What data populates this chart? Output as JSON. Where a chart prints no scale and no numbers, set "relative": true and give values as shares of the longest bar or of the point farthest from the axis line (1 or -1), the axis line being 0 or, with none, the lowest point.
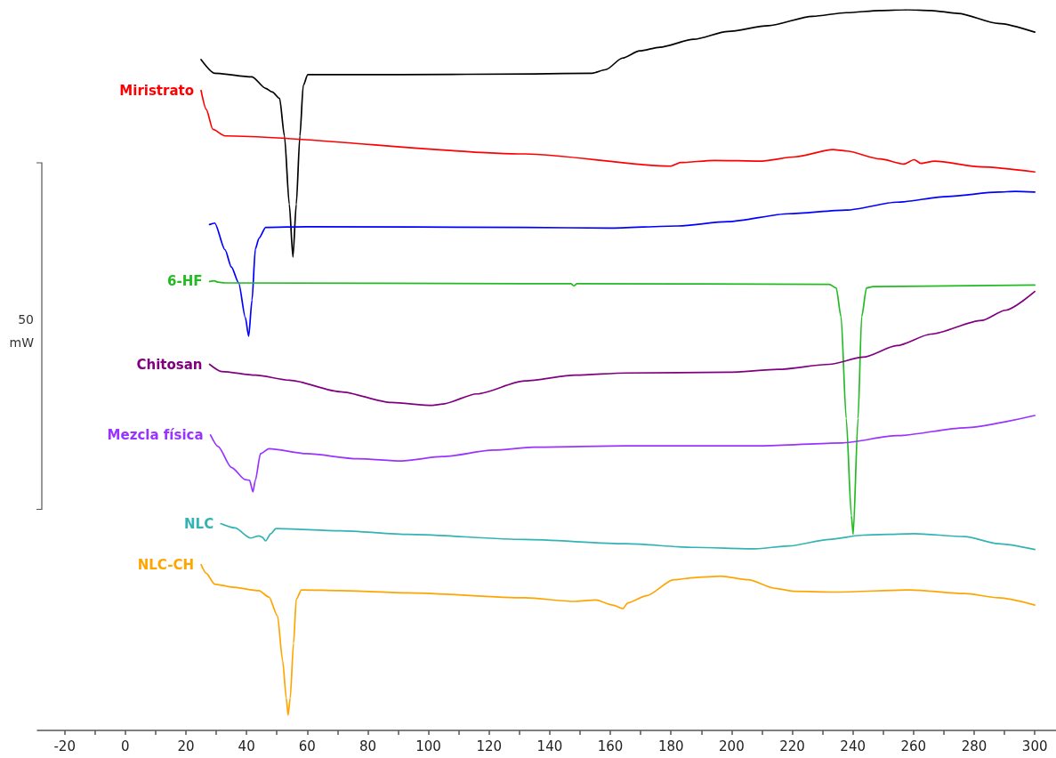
{
  "chart_data": {
    "type": "line",
    "relative": true,
    "marker": "none",
    "line_style": "solid",
    "xlim": [
      -29,
      307
    ],
    "xticks": [
      -20,
      {
        "value": -10,
        "label": null
      },
      0,
      {
        "value": 10,
        "label": null
      },
      20,
      {
        "value": 30,
        "label": null
      },
      40,
      {
        "value": 50,
        "label": null
      },
      60,
      {
        "value": 70,
        "label": null
      },
      80,
      {
        "value": 90,
        "label": null
      },
      100,
      {
        "value": 110,
        "label": null
      },
      120,
      {
        "value": 130,
        "label": null
      },
      140,
      {
        "value": 150,
        "label": null
      },
      160,
      {
        "value": 170,
        "label": null
      },
      180,
      {
        "value": 190,
        "label": null
      },
      200,
      {
        "value": 210,
        "label": null
      },
      220,
      {
        "value": 230,
        "label": null
      },
      240,
      {
        "value": 250,
        "label": null
      },
      260,
      {
        "value": 270,
        "label": null
      },
      280,
      {
        "value": 290,
        "label": null
      },
      300
    ],
    "annotations": [
      "50 mW"
    ],
    "series": [
      {
        "color": "#000000",
        "x": [
          25,
          29.5,
          41.8,
          46.3,
          48.5,
          50.9,
          52.5,
          54.1,
          55.3,
          56.4,
          57.6,
          58.7,
          60.2,
          90.7,
          134.7,
          154,
          158.5,
          164,
          169.7,
          176.3,
          187.5,
          198.8,
          212.1,
          226.7,
          237.8,
          249,
          257.8,
          265.8,
          274.7,
          288,
          300
        ],
        "values": [
          0.931,
          0.912,
          0.907,
          0.891,
          0.886,
          0.877,
          0.825,
          0.73,
          0.657,
          0.73,
          0.825,
          0.895,
          0.91,
          0.91,
          0.911,
          0.912,
          0.917,
          0.933,
          0.943,
          0.948,
          0.959,
          0.97,
          0.978,
          0.991,
          0.996,
          0.999,
          1,
          0.999,
          0.995,
          0.981,
          0.969
        ]
      },
      {
        "name": "Miristrato",
        "color": "#ff0000",
        "x": [
          25,
          26.7,
          28.9,
          32.9,
          131.8,
          179.8,
          183.1,
          194.2,
          209.9,
          221.1,
          233.4,
          237.8,
          249,
          256.8,
          260.2,
          262.4,
          266.9,
          282.5,
          300
        ],
        "values": [
          0.888,
          0.862,
          0.834,
          0.825,
          0.8,
          0.783,
          0.788,
          0.791,
          0.79,
          0.796,
          0.806,
          0.804,
          0.793,
          0.786,
          0.792,
          0.787,
          0.79,
          0.782,
          0.775
        ]
      },
      {
        "color": "#0000ff",
        "x": [
          27.8,
          29.5,
          32.9,
          35,
          37.4,
          39.6,
          40.7,
          41.8,
          42.9,
          44.1,
          46.3,
          59.8,
          131.8,
          159.6,
          182,
          198.8,
          218.9,
          237.8,
          254.6,
          271.3,
          288,
          293.6,
          300
        ],
        "values": [
          0.702,
          0.704,
          0.667,
          0.643,
          0.621,
          0.573,
          0.547,
          0.597,
          0.668,
          0.683,
          0.698,
          0.699,
          0.698,
          0.697,
          0.7,
          0.706,
          0.717,
          0.722,
          0.733,
          0.741,
          0.747,
          0.748,
          0.747
        ]
      },
      {
        "name": "6-HF",
        "color": "#22bb22",
        "x": [
          27.8,
          29.3,
          30.6,
          32.9,
          131.8,
          147,
          148,
          149,
          232.2,
          234.5,
          236.1,
          237.8,
          239.5,
          240.1,
          241.7,
          242.9,
          244.5,
          246.7,
          300
        ],
        "values": [
          0.623,
          0.624,
          0.622,
          0.621,
          0.62,
          0.62,
          0.617,
          0.62,
          0.619,
          0.614,
          0.574,
          0.433,
          0.298,
          0.272,
          0.433,
          0.574,
          0.614,
          0.616,
          0.618
        ]
      },
      {
        "name": "Chitosan",
        "color": "#800080",
        "x": [
          27.8,
          31.8,
          42.9,
          54.2,
          71,
          87.8,
          101.3,
          104.7,
          115.9,
          131.8,
          148.5,
          165.3,
          198.8,
          215.5,
          232.2,
          243.4,
          254.6,
          265.8,
          282.5,
          290.3,
          300
        ],
        "values": [
          0.508,
          0.498,
          0.493,
          0.486,
          0.47,
          0.455,
          0.451,
          0.453,
          0.467,
          0.485,
          0.493,
          0.496,
          0.497,
          0.501,
          0.508,
          0.518,
          0.534,
          0.55,
          0.569,
          0.583,
          0.609
        ]
      },
      {
        "name": "Mezcla física",
        "color": "#9933ff",
        "x": [
          28.1,
          30.6,
          35,
          39.6,
          41,
          42.1,
          42.9,
          44.6,
          47.4,
          59.8,
          76.6,
          91.2,
          104.7,
          121.5,
          134.7,
          165.2,
          209.9,
          236.4,
          254.6,
          276.9,
          300
        ],
        "values": [
          0.41,
          0.394,
          0.365,
          0.348,
          0.347,
          0.331,
          0.347,
          0.384,
          0.391,
          0.384,
          0.377,
          0.374,
          0.38,
          0.389,
          0.393,
          0.395,
          0.395,
          0.399,
          0.409,
          0.42,
          0.437
        ]
      },
      {
        "name": "NLC",
        "color": "#33b3b3",
        "x": [
          31.5,
          36.2,
          41.3,
          44.1,
          45.2,
          46.3,
          48,
          49.7,
          71,
          93.4,
          131.8,
          165.3,
          187.6,
          207.7,
          218.9,
          232.2,
          243.4,
          260.2,
          276.9,
          288,
          300
        ],
        "values": [
          0.287,
          0.281,
          0.267,
          0.27,
          0.268,
          0.263,
          0.273,
          0.28,
          0.277,
          0.272,
          0.265,
          0.259,
          0.254,
          0.252,
          0.256,
          0.265,
          0.271,
          0.273,
          0.269,
          0.259,
          0.251
        ]
      },
      {
        "name": "NLC-CH",
        "color": "#ffa500",
        "x": [
          25,
          26.7,
          29.5,
          35.1,
          44.1,
          47.4,
          50.2,
          51.9,
          53.1,
          53.7,
          54.4,
          55.5,
          56.4,
          58.1,
          71,
          93.4,
          131.8,
          148.5,
          155.2,
          160.8,
          164.1,
          165.8,
          171.9,
          180.9,
          187.6,
          196.5,
          205.5,
          214.4,
          221.1,
          234.5,
          259,
          276.9,
          288,
          300
        ],
        "values": [
          0.23,
          0.218,
          0.203,
          0.199,
          0.194,
          0.185,
          0.159,
          0.097,
          0.045,
          0.021,
          0.045,
          0.121,
          0.182,
          0.195,
          0.194,
          0.191,
          0.184,
          0.179,
          0.181,
          0.174,
          0.169,
          0.177,
          0.187,
          0.209,
          0.212,
          0.214,
          0.209,
          0.197,
          0.193,
          0.192,
          0.195,
          0.19,
          0.184,
          0.174
        ]
      }
    ]
  }
}
